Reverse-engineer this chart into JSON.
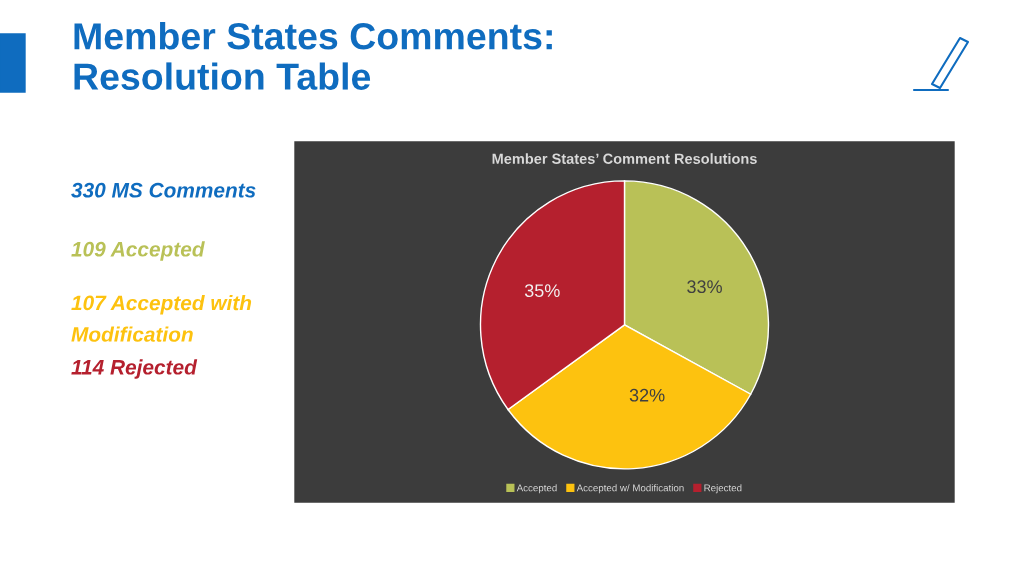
{
  "chart_data": {
    "type": "pie",
    "title": "Member States Comments:\nResolution Table",
    "subtitle": "Member States’ Comment Resolutions",
    "categories": [
      "Accepted",
      "Accepted w/ Modification",
      "Rejected"
    ],
    "values": [
      33,
      32,
      35
    ],
    "colors": [
      "#b9c157",
      "#fdc20f",
      "#b5202e"
    ],
    "value_labels": [
      "33%",
      "32%",
      "35%"
    ],
    "legend": "bottom",
    "annotations": [
      "330 MS Comments",
      "109 Accepted",
      "107 Accepted with\nModification",
      "114 Rejected"
    ]
  }
}
